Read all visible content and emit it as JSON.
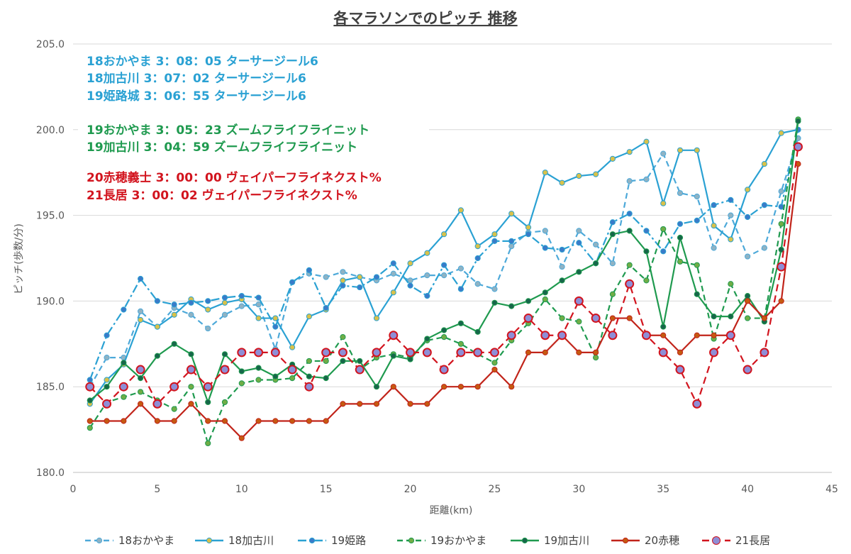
{
  "chart_data": {
    "type": "line",
    "title": "各マラソンでのピッチ  推移",
    "xlabel": "距離(km)",
    "ylabel": "ピッチ(歩数/分)",
    "xlim": [
      0,
      45
    ],
    "ylim": [
      180,
      205
    ],
    "x_ticks": [
      "0",
      "5",
      "10",
      "15",
      "20",
      "25",
      "30",
      "35",
      "40",
      "45"
    ],
    "y_ticks": [
      "180.0",
      "185.0",
      "190.0",
      "195.0",
      "200.0",
      "205.0"
    ],
    "grid": "horizontal",
    "legend_position": "bottom",
    "annotations": [
      {
        "text": "18おかやま   3：08：05   ターサージール6",
        "color": "#2aa1d3"
      },
      {
        "text": "18加古川      3：07：02   ターサージール6",
        "color": "#2aa1d3"
      },
      {
        "text": "19姫路城      3：06：55   ターサージール6",
        "color": "#2aa1d3"
      },
      {
        "text": "19おかやま   3：05：23   ズームフライフライニット",
        "color": "#1f9a4f"
      },
      {
        "text": "19加古川      3：04：59   ズームフライフライニット",
        "color": "#1f9a4f"
      },
      {
        "text": "20赤穂義士   3：00：00   ヴェイパーフライネクスト%",
        "color": "#d2141e"
      },
      {
        "text": "21長居          3：00：02   ヴェイパーフライネクスト%",
        "color": "#d2141e"
      }
    ],
    "x": [
      1,
      2,
      3,
      4,
      5,
      6,
      7,
      8,
      9,
      10,
      11,
      12,
      13,
      14,
      15,
      16,
      17,
      18,
      19,
      20,
      21,
      22,
      23,
      24,
      25,
      26,
      27,
      28,
      29,
      30,
      31,
      32,
      33,
      34,
      35,
      36,
      37,
      38,
      39,
      40,
      41,
      42,
      43
    ],
    "series": [
      {
        "name": "18おかやま",
        "color": "#4da9d9",
        "dash": "8,5",
        "marker_color": "#8fb3c4",
        "values": [
          185.0,
          186.7,
          186.7,
          189.4,
          188.5,
          189.6,
          189.2,
          188.4,
          189.2,
          189.7,
          189.8,
          187.2,
          191.1,
          191.6,
          191.4,
          191.7,
          191.4,
          191.2,
          191.6,
          191.2,
          191.5,
          191.5,
          191.9,
          191.0,
          190.7,
          193.2,
          194.0,
          194.1,
          192.0,
          194.1,
          193.3,
          192.2,
          197.0,
          197.1,
          198.6,
          196.3,
          196.1,
          193.1,
          195.0,
          192.6,
          193.1,
          196.4,
          199.5
        ]
      },
      {
        "name": "18加古川",
        "color": "#2aa1d3",
        "dash": "",
        "marker_color": "#d9c14a",
        "values": [
          184.0,
          185.4,
          186.3,
          188.9,
          188.5,
          189.2,
          190.1,
          189.5,
          189.9,
          190.1,
          189.0,
          189.0,
          187.3,
          189.1,
          189.5,
          191.2,
          191.4,
          189.0,
          190.5,
          192.2,
          192.8,
          193.9,
          195.3,
          193.2,
          193.9,
          195.1,
          194.3,
          197.5,
          196.9,
          197.3,
          197.4,
          198.3,
          198.7,
          199.3,
          195.7,
          198.8,
          198.8,
          194.4,
          193.6,
          196.5,
          198.0,
          199.8,
          200.0
        ]
      },
      {
        "name": "19姫路",
        "color": "#2aa1d3",
        "dash": "12,4,3,4",
        "marker_color": "#3a7bc8",
        "values": [
          185.4,
          188.0,
          189.5,
          191.3,
          190.0,
          189.8,
          189.9,
          190.0,
          190.2,
          190.3,
          190.2,
          188.5,
          191.1,
          191.8,
          189.6,
          190.9,
          190.8,
          191.4,
          192.2,
          190.9,
          190.3,
          192.1,
          190.7,
          192.5,
          193.5,
          193.5,
          193.9,
          193.1,
          193.0,
          193.4,
          192.2,
          194.6,
          195.1,
          194.1,
          192.9,
          194.5,
          194.7,
          195.6,
          195.9,
          194.9,
          195.6,
          195.5,
          200.0
        ]
      },
      {
        "name": "19おかやま",
        "color": "#1f9a4f",
        "dash": "8,5",
        "marker_color": "#70ad47",
        "values": [
          182.6,
          184.1,
          184.4,
          184.7,
          184.2,
          183.7,
          185.0,
          181.7,
          184.1,
          185.2,
          185.4,
          185.4,
          185.5,
          186.5,
          186.5,
          187.9,
          186.0,
          186.7,
          186.9,
          186.7,
          187.7,
          187.9,
          187.5,
          186.9,
          186.4,
          187.7,
          188.7,
          190.1,
          189.0,
          188.8,
          186.7,
          190.4,
          192.1,
          191.2,
          194.2,
          192.3,
          192.1,
          187.8,
          191.0,
          189.0,
          189.0,
          194.5,
          200.6
        ]
      },
      {
        "name": "19加古川",
        "color": "#1f9a4f",
        "dash": "",
        "marker_color": "#17664a",
        "values": [
          184.2,
          185.0,
          186.4,
          185.5,
          186.8,
          187.5,
          186.9,
          184.1,
          186.9,
          185.9,
          186.1,
          185.6,
          186.3,
          185.6,
          185.5,
          186.5,
          186.5,
          185.0,
          186.8,
          186.6,
          187.8,
          188.3,
          188.7,
          188.2,
          189.9,
          189.7,
          190.0,
          190.5,
          191.2,
          191.7,
          192.2,
          193.9,
          194.1,
          192.9,
          188.5,
          193.7,
          190.4,
          189.1,
          189.1,
          190.3,
          188.8,
          193.0,
          200.5
        ]
      },
      {
        "name": "20赤穂",
        "color": "#c1241a",
        "dash": "",
        "marker_color": "#c55a11",
        "values": [
          183,
          183,
          183,
          184,
          183,
          183,
          184,
          183,
          183,
          182,
          183,
          183,
          183,
          183,
          183,
          184,
          184,
          184,
          185,
          184,
          184,
          185,
          185,
          185,
          186,
          185,
          187,
          187,
          188,
          187,
          187,
          189,
          189,
          188,
          188,
          187,
          188,
          188,
          188,
          190,
          189,
          190,
          198
        ]
      },
      {
        "name": "21長居",
        "color": "#d2141e",
        "dash": "10,6",
        "marker_color": "#8e8ed6",
        "values": [
          185,
          184,
          185,
          186,
          184,
          185,
          186,
          185,
          186,
          187,
          187,
          187,
          186,
          185,
          187,
          187,
          186,
          187,
          188,
          187,
          187,
          186,
          187,
          187,
          187,
          188,
          189,
          188,
          188,
          190,
          189,
          188,
          191,
          188,
          187,
          186,
          184,
          187,
          188,
          186,
          187,
          192,
          199
        ]
      }
    ]
  }
}
